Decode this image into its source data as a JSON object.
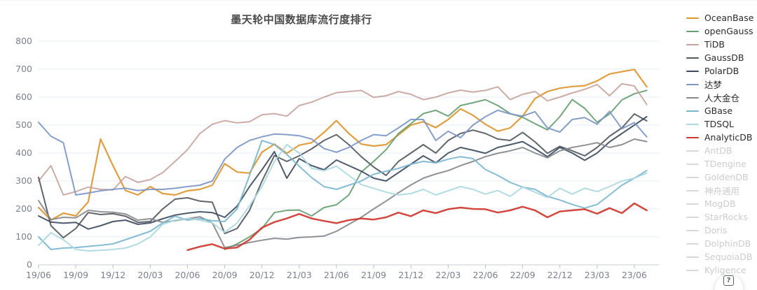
{
  "title": "墨天轮中国数据库流行度排行",
  "help_button": {
    "label": "?"
  },
  "legend": {
    "items": [
      {
        "label": "OceanBase",
        "color": "#dc962f",
        "active": true
      },
      {
        "label": "openGauss",
        "color": "#679e72",
        "active": true
      },
      {
        "label": "TiDB",
        "color": "#c7a59e",
        "active": true
      },
      {
        "label": "GaussDB",
        "color": "#54595e",
        "active": true
      },
      {
        "label": "PolarDB",
        "color": "#3d4c5f",
        "active": true
      },
      {
        "label": "达梦",
        "color": "#7c96c5",
        "active": true
      },
      {
        "label": "人大金仓",
        "color": "#85888c",
        "active": true
      },
      {
        "label": "GBase",
        "color": "#7bb6cf",
        "active": true
      },
      {
        "label": "TDSQL",
        "color": "#abd8df",
        "active": true
      },
      {
        "label": "AnalyticDB",
        "color": "#ce3a31",
        "active": true
      },
      {
        "label": "AntDB",
        "color": "#d8d8d8",
        "active": false
      },
      {
        "label": "TDengine",
        "color": "#d8d8d8",
        "active": false
      },
      {
        "label": "GoldenDB",
        "color": "#d8d8d8",
        "active": false
      },
      {
        "label": "神舟通用",
        "color": "#d8d8d8",
        "active": false
      },
      {
        "label": "MogDB",
        "color": "#d8d8d8",
        "active": false
      },
      {
        "label": "StarRocks",
        "color": "#d8d8d8",
        "active": false
      },
      {
        "label": "Doris",
        "color": "#d8d8d8",
        "active": false
      },
      {
        "label": "DolphinDB",
        "color": "#d8d8d8",
        "active": false
      },
      {
        "label": "SequoiaDB",
        "color": "#d8d8d8",
        "active": false
      },
      {
        "label": "Kyligence",
        "color": "#d8d8d8",
        "active": false
      }
    ]
  },
  "chart_data": {
    "type": "line",
    "title": "墨天轮中国数据库流行度排行",
    "xlabel": "",
    "ylabel": "",
    "ylim": [
      0,
      800
    ],
    "y_ticks": [
      0,
      100,
      200,
      300,
      400,
      500,
      600,
      700,
      800
    ],
    "grid": true,
    "legend_position": "right",
    "x_tick_labels": [
      "19/06",
      "19/09",
      "19/12",
      "20/03",
      "20/06",
      "20/09",
      "20/12",
      "21/03",
      "21/06",
      "21/09",
      "21/12",
      "22/03",
      "22/06",
      "22/09",
      "22/12",
      "23/03",
      "23/06"
    ],
    "months": [
      "19/06",
      "19/07",
      "19/08",
      "19/09",
      "19/10",
      "19/11",
      "19/12",
      "20/01",
      "20/02",
      "20/03",
      "20/04",
      "20/05",
      "20/06",
      "20/07",
      "20/08",
      "20/09",
      "20/10",
      "20/11",
      "20/12",
      "21/01",
      "21/02",
      "21/03",
      "21/04",
      "21/05",
      "21/06",
      "21/07",
      "21/08",
      "21/09",
      "21/10",
      "21/11",
      "21/12",
      "22/01",
      "22/02",
      "22/03",
      "22/04",
      "22/05",
      "22/06",
      "22/07",
      "22/08",
      "22/09",
      "22/10",
      "22/11",
      "22/12",
      "23/01",
      "23/02",
      "23/03",
      "23/04",
      "23/05",
      "23/06",
      "23/07"
    ],
    "series": [
      {
        "name": "OceanBase",
        "color": "#dc962f",
        "width": 2.2,
        "values": [
          205,
          160,
          185,
          175,
          225,
          450,
          355,
          266,
          250,
          280,
          255,
          250,
          265,
          270,
          285,
          362,
          332,
          328,
          403,
          432,
          399,
          428,
          437,
          474,
          516,
          470,
          432,
          425,
          430,
          465,
          500,
          512,
          491,
          520,
          558,
          535,
          503,
          478,
          490,
          532,
          595,
          620,
          632,
          638,
          641,
          658,
          683,
          691,
          699,
          637
        ]
      },
      {
        "name": "openGauss",
        "color": "#679e72",
        "width": 2,
        "values": [
          null,
          null,
          null,
          null,
          null,
          null,
          null,
          null,
          null,
          null,
          null,
          null,
          null,
          null,
          null,
          55,
          75,
          100,
          130,
          187,
          195,
          196,
          175,
          205,
          215,
          250,
          332,
          370,
          412,
          470,
          505,
          541,
          553,
          532,
          570,
          580,
          591,
          570,
          541,
          528,
          505,
          483,
          530,
          591,
          560,
          510,
          540,
          590,
          612,
          624
        ]
      },
      {
        "name": "TiDB",
        "color": "#c7a59e",
        "width": 2,
        "values": [
          300,
          355,
          250,
          262,
          278,
          270,
          268,
          316,
          295,
          305,
          330,
          370,
          412,
          470,
          503,
          516,
          508,
          512,
          537,
          541,
          532,
          570,
          582,
          600,
          616,
          620,
          624,
          599,
          605,
          620,
          610,
          591,
          600,
          615,
          625,
          618,
          624,
          637,
          591,
          610,
          620,
          587,
          600,
          615,
          628,
          645,
          605,
          648,
          640,
          574
        ]
      },
      {
        "name": "GaussDB",
        "color": "#54595e",
        "width": 2,
        "values": [
          313,
          140,
          97,
          130,
          187,
          180,
          183,
          174,
          152,
          155,
          200,
          235,
          240,
          228,
          224,
          112,
          130,
          195,
          299,
          391,
          370,
          390,
          415,
          445,
          466,
          430,
          387,
          350,
          320,
          370,
          400,
          430,
          400,
          445,
          470,
          482,
          470,
          450,
          445,
          474,
          440,
          399,
          424,
          408,
          390,
          420,
          460,
          490,
          540,
          515
        ]
      },
      {
        "name": "PolarDB",
        "color": "#3d4c5f",
        "width": 2,
        "values": [
          175,
          153,
          149,
          152,
          128,
          140,
          155,
          160,
          145,
          150,
          165,
          178,
          185,
          190,
          187,
          170,
          210,
          280,
          340,
          405,
          310,
          380,
          355,
          340,
          375,
          355,
          335,
          310,
          300,
          330,
          360,
          390,
          365,
          400,
          420,
          410,
          399,
          420,
          430,
          441,
          415,
          387,
          420,
          400,
          374,
          400,
          440,
          470,
          500,
          530
        ]
      },
      {
        "name": "达梦",
        "color": "#7c96c5",
        "width": 2,
        "values": [
          510,
          460,
          437,
          250,
          257,
          265,
          270,
          274,
          266,
          270,
          270,
          274,
          280,
          285,
          300,
          378,
          420,
          445,
          458,
          468,
          466,
          462,
          450,
          416,
          403,
          420,
          445,
          466,
          462,
          490,
          520,
          520,
          445,
          478,
          455,
          500,
          530,
          553,
          540,
          532,
          548,
          490,
          475,
          520,
          527,
          503,
          549,
          487,
          509,
          458
        ]
      },
      {
        "name": "人大金仓",
        "color": "#85888c",
        "width": 2,
        "values": [
          230,
          162,
          170,
          168,
          195,
          190,
          188,
          182,
          160,
          165,
          152,
          158,
          165,
          172,
          150,
          62,
          70,
          80,
          88,
          95,
          92,
          98,
          100,
          103,
          120,
          145,
          170,
          200,
          228,
          258,
          286,
          310,
          325,
          337,
          355,
          370,
          387,
          399,
          408,
          420,
          400,
          383,
          408,
          420,
          428,
          437,
          420,
          430,
          450,
          441
        ]
      },
      {
        "name": "GBase",
        "color": "#7bb6cf",
        "width": 2,
        "values": [
          100,
          55,
          60,
          62,
          66,
          70,
          75,
          90,
          105,
          120,
          150,
          174,
          160,
          165,
          158,
          155,
          200,
          320,
          445,
          430,
          395,
          353,
          312,
          280,
          270,
          285,
          300,
          324,
          335,
          345,
          360,
          370,
          365,
          378,
          387,
          380,
          341,
          320,
          295,
          278,
          270,
          245,
          232,
          216,
          203,
          216,
          250,
          285,
          310,
          337
        ]
      },
      {
        "name": "TDSQL",
        "color": "#abd8df",
        "width": 2,
        "values": [
          70,
          115,
          90,
          55,
          50,
          52,
          55,
          60,
          75,
          100,
          145,
          160,
          166,
          160,
          150,
          116,
          150,
          211,
          280,
          370,
          430,
          400,
          345,
          337,
          353,
          320,
          287,
          274,
          260,
          250,
          255,
          270,
          250,
          265,
          280,
          270,
          253,
          266,
          245,
          278,
          260,
          241,
          274,
          253,
          274,
          262,
          280,
          300,
          310,
          328
        ]
      },
      {
        "name": "AnalyticDB",
        "color": "#ce3a31",
        "width": 2.5,
        "values": [
          null,
          null,
          null,
          null,
          null,
          null,
          null,
          null,
          null,
          null,
          null,
          null,
          53,
          65,
          74,
          58,
          62,
          90,
          133,
          153,
          166,
          182,
          166,
          157,
          149,
          160,
          166,
          162,
          170,
          187,
          174,
          195,
          185,
          199,
          205,
          200,
          199,
          187,
          195,
          208,
          195,
          170,
          191,
          195,
          199,
          183,
          203,
          185,
          220,
          195
        ]
      }
    ],
    "inactive_series": [
      "AntDB",
      "TDengine",
      "GoldenDB",
      "神舟通用",
      "MogDB",
      "StarRocks",
      "Doris",
      "DolphinDB",
      "SequoiaDB",
      "Kyligence"
    ]
  }
}
